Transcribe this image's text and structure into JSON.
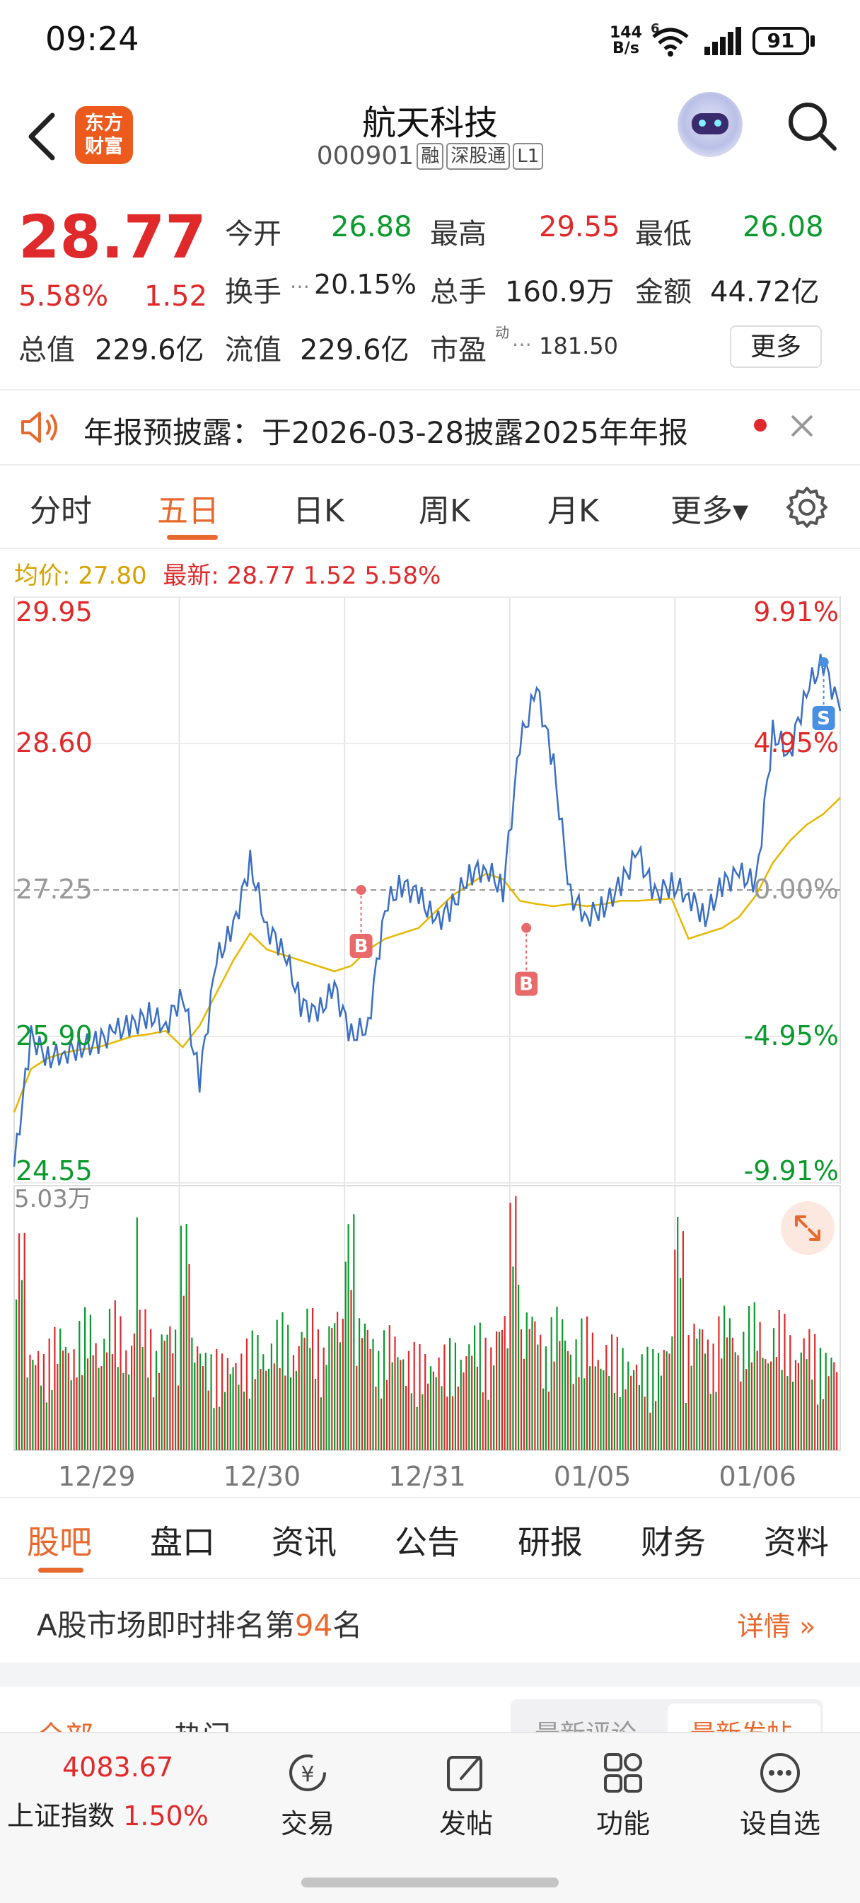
{
  "status_bar": {
    "time": "09:24",
    "net_speed_top": "144",
    "net_speed_bottom": "B/s",
    "signal_badge": "6",
    "battery": "91"
  },
  "header": {
    "logo_line1": "东方",
    "logo_line2": "财富",
    "title": "航天科技",
    "code": "000901",
    "tags": [
      "融",
      "深股通",
      "L1"
    ],
    "back_icon": "chevron-left-icon",
    "search_icon": "search-icon",
    "avatar_icon": "robot-assistant-icon"
  },
  "quote": {
    "price": "28.77",
    "change_pct": "5.58%",
    "change": "1.52",
    "open_label": "今开",
    "open": "26.88",
    "high_label": "最高",
    "high": "29.55",
    "low_label": "最低",
    "low": "26.08",
    "turnover_label": "换手",
    "turnover": "20.15%",
    "volume_label": "总手",
    "volume": "160.9万",
    "amount_label": "金额",
    "amount": "44.72亿",
    "mktcap_label": "总值",
    "mktcap": "229.6亿",
    "float_label": "流值",
    "float_cap": "229.6亿",
    "pe_label": "市盈",
    "pe_sup": "动",
    "pe": "181.50",
    "more_label": "更多"
  },
  "notice": {
    "text": "年报预披露：于2026-03-28披露2025年年报"
  },
  "chart_tabs": [
    "分时",
    "五日",
    "日K",
    "周K",
    "月K",
    "更多▾"
  ],
  "chart_tab_active": 1,
  "chart_info": {
    "avg_label": "均价: 27.80",
    "latest_label": "最新: 28.77 1.52 5.58%"
  },
  "volume_max_label": "5.03万",
  "chart_data": {
    "type": "line",
    "title": "",
    "x_ticks": [
      "12/29",
      "12/30",
      "12/31",
      "01/05",
      "01/06"
    ],
    "y_ticks_left": [
      "29.95",
      "28.60",
      "27.25",
      "25.90",
      "24.55"
    ],
    "y_ticks_right": [
      "9.91%",
      "4.95%",
      "0.00%",
      "-4.95%",
      "-9.91%"
    ],
    "ylim": [
      24.55,
      29.95
    ],
    "prev_close": 27.25,
    "series": [
      {
        "name": "price",
        "color": "#3a6fc4",
        "values": [
          24.7,
          25.9,
          25.7,
          25.75,
          25.8,
          25.85,
          25.95,
          26.0,
          26.1,
          26.0,
          26.3,
          25.5,
          26.6,
          26.9,
          27.5,
          26.9,
          26.7,
          26.2,
          26.1,
          26.35,
          25.9,
          26.0,
          27.1,
          27.3,
          27.2,
          26.95,
          27.1,
          27.4,
          27.45,
          27.25,
          28.6,
          29.1,
          28.4,
          27.2,
          27.0,
          27.1,
          27.3,
          27.6,
          27.2,
          27.3,
          27.2,
          27.0,
          27.3,
          27.4,
          27.3,
          28.7,
          28.5,
          29.1,
          29.35,
          28.9
        ]
      },
      {
        "name": "avg",
        "color": "#e6b800",
        "values": [
          25.2,
          25.6,
          25.7,
          25.75,
          25.78,
          25.8,
          25.85,
          25.9,
          25.92,
          25.95,
          25.8,
          26.0,
          26.3,
          26.6,
          26.85,
          26.7,
          26.65,
          26.6,
          26.55,
          26.5,
          26.55,
          26.7,
          26.8,
          26.85,
          26.9,
          27.05,
          27.2,
          27.3,
          27.4,
          27.35,
          27.15,
          27.12,
          27.1,
          27.12,
          27.1,
          27.12,
          27.15,
          27.15,
          27.16,
          27.17,
          26.8,
          26.85,
          26.9,
          27.0,
          27.2,
          27.5,
          27.7,
          27.85,
          27.95,
          28.1
        ]
      }
    ],
    "markers": [
      {
        "label": "B",
        "x_day": 2,
        "value": 27.25
      },
      {
        "label": "B",
        "x_day": 3,
        "value": 26.9
      },
      {
        "label": "S",
        "x_day": 4,
        "value": 29.35
      }
    ],
    "volume_max": "5.03万",
    "grid": true
  },
  "sub_tabs": [
    "股吧",
    "盘口",
    "资讯",
    "公告",
    "研报",
    "财务",
    "资料"
  ],
  "sub_tab_active": 0,
  "rank": {
    "prefix": "A股市场即时排名第",
    "rank": "94",
    "suffix": "名",
    "detail": "详情"
  },
  "comments": {
    "tab_all": "全部",
    "tab_hot": "热门",
    "sort_comment": "最新评论",
    "sort_post": "最新发帖"
  },
  "bottom_nav": {
    "index_value": "4083.67",
    "index_name": "上证指数",
    "index_change": "1.50%",
    "items": [
      {
        "label": "交易",
        "icon": "yen-exchange-icon"
      },
      {
        "label": "发帖",
        "icon": "edit-post-icon"
      },
      {
        "label": "功能",
        "icon": "grid-apps-icon"
      },
      {
        "label": "设自选",
        "icon": "more-dots-icon"
      }
    ]
  }
}
